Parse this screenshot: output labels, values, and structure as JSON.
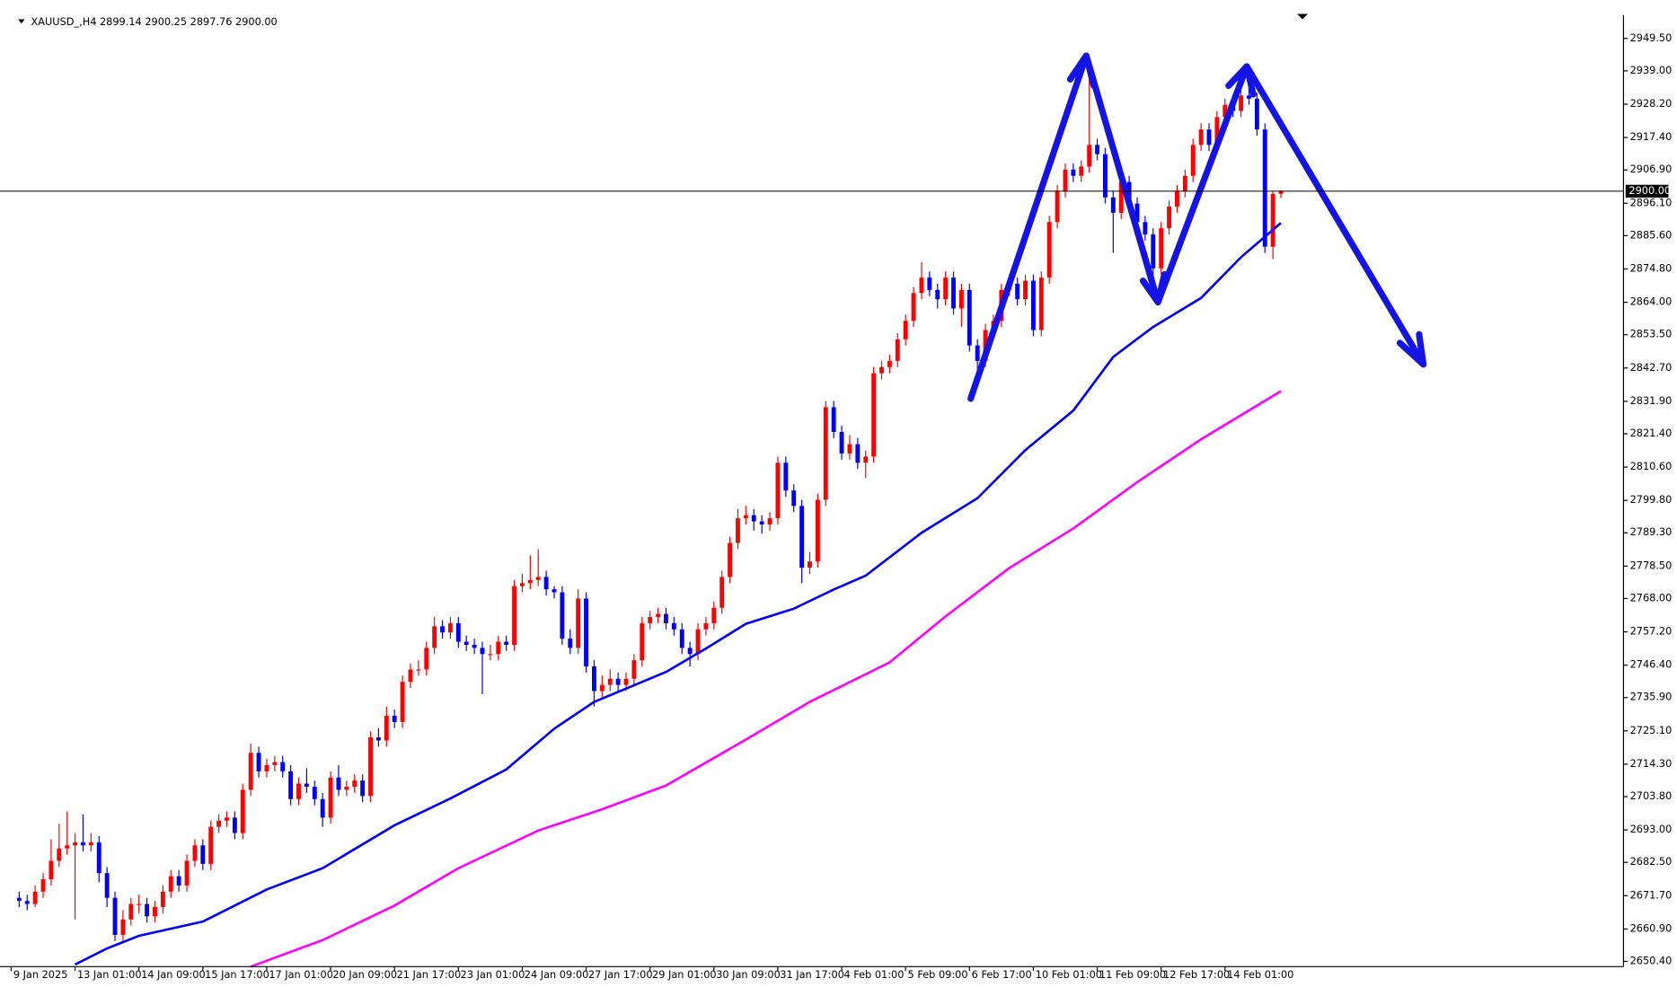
{
  "chart_data": {
    "type": "candlestick",
    "title": "XAUUSD_,H4  2899.14 2900.25 2897.76 2900.00",
    "up_color": "#ff0000",
    "down_color": "#0000ff",
    "grid": false,
    "xlim": [
      -2.4,
      200.9
    ],
    "ylim": [
      2648.7,
      2957.1
    ],
    "yticks": [
      {
        "value": 2650.4,
        "label": "2650.40"
      },
      {
        "value": 2660.9,
        "label": "2660.90"
      },
      {
        "value": 2671.7,
        "label": "2671.70"
      },
      {
        "value": 2682.5,
        "label": "2682.50"
      },
      {
        "value": 2693,
        "label": "2693.00"
      },
      {
        "value": 2703.8,
        "label": "2703.80"
      },
      {
        "value": 2714.3,
        "label": "2714.30"
      },
      {
        "value": 2725.1,
        "label": "2725.10"
      },
      {
        "value": 2735.9,
        "label": "2735.90"
      },
      {
        "value": 2746.4,
        "label": "2746.40"
      },
      {
        "value": 2757.2,
        "label": "2757.20"
      },
      {
        "value": 2768,
        "label": "2768.00"
      },
      {
        "value": 2778.5,
        "label": "2778.50"
      },
      {
        "value": 2789.3,
        "label": "2789.30"
      },
      {
        "value": 2799.8,
        "label": "2799.80"
      },
      {
        "value": 2810.6,
        "label": "2810.60"
      },
      {
        "value": 2821.4,
        "label": "2821.40"
      },
      {
        "value": 2831.9,
        "label": "2831.90"
      },
      {
        "value": 2842.7,
        "label": "2842.70"
      },
      {
        "value": 2853.5,
        "label": "2853.50"
      },
      {
        "value": 2864,
        "label": "2864.00"
      },
      {
        "value": 2874.8,
        "label": "2874.80"
      },
      {
        "value": 2885.6,
        "label": "2885.60"
      },
      {
        "value": 2896.1,
        "label": "2896.10"
      },
      {
        "value": 2906.9,
        "label": "2906.90"
      },
      {
        "value": 2917.4,
        "label": "2917.40"
      },
      {
        "value": 2928.2,
        "label": "2928.20"
      },
      {
        "value": 2939,
        "label": "2939.00"
      },
      {
        "value": 2949.5,
        "label": "2949.50"
      }
    ],
    "xticks": [
      {
        "value": -1,
        "label": "9 Jan 2025"
      },
      {
        "value": 7,
        "label": "13 Jan 01:00"
      },
      {
        "value": 15,
        "label": "14 Jan 09:00"
      },
      {
        "value": 23,
        "label": "15 Jan 17:00"
      },
      {
        "value": 31,
        "label": "17 Jan 01:00"
      },
      {
        "value": 39,
        "label": "20 Jan 09:00"
      },
      {
        "value": 47,
        "label": "21 Jan 17:00"
      },
      {
        "value": 55,
        "label": "23 Jan 01:00"
      },
      {
        "value": 63,
        "label": "24 Jan 09:00"
      },
      {
        "value": 71,
        "label": "27 Jan 17:00"
      },
      {
        "value": 79,
        "label": "29 Jan 01:00"
      },
      {
        "value": 87,
        "label": "30 Jan 09:00"
      },
      {
        "value": 95,
        "label": "31 Jan 17:00"
      },
      {
        "value": 103,
        "label": "4 Feb 01:00"
      },
      {
        "value": 111,
        "label": "5 Feb 09:00"
      },
      {
        "value": 119,
        "label": "6 Feb 17:00"
      },
      {
        "value": 127,
        "label": "10 Feb 01:00"
      },
      {
        "value": 135,
        "label": "11 Feb 09:00"
      },
      {
        "value": 143,
        "label": "12 Feb 17:00"
      },
      {
        "value": 151,
        "label": "14 Feb 01:00"
      }
    ],
    "price_line": {
      "value": 2900,
      "label": "2900.00"
    },
    "ohlc": [
      [
        2671,
        2673,
        2668,
        2670
      ],
      [
        2670,
        2672,
        2667,
        2669
      ],
      [
        2669,
        2675,
        2668,
        2673
      ],
      [
        2673,
        2679,
        2671,
        2677
      ],
      [
        2677,
        2690,
        2675,
        2683
      ],
      [
        2683,
        2695,
        2681,
        2687
      ],
      [
        2687,
        2699,
        2685,
        2688
      ],
      [
        2688,
        2692,
        2664,
        2689
      ],
      [
        2689,
        2698,
        2686,
        2688
      ],
      [
        2688,
        2692,
        2686,
        2689
      ],
      [
        2689,
        2691,
        2676,
        2679
      ],
      [
        2679,
        2681,
        2668,
        2671
      ],
      [
        2671,
        2673,
        2657,
        2659
      ],
      [
        2659,
        2667,
        2657,
        2664
      ],
      [
        2664,
        2671,
        2662,
        2669
      ],
      [
        2669,
        2672,
        2666,
        2669
      ],
      [
        2669,
        2671,
        2663,
        2665
      ],
      [
        2665,
        2670,
        2663,
        2668
      ],
      [
        2668,
        2675,
        2666,
        2673
      ],
      [
        2673,
        2680,
        2671,
        2678
      ],
      [
        2678,
        2680,
        2673,
        2675
      ],
      [
        2675,
        2685,
        2673,
        2683
      ],
      [
        2683,
        2690,
        2681,
        2688
      ],
      [
        2688,
        2690,
        2680,
        2682
      ],
      [
        2682,
        2696,
        2680,
        2694
      ],
      [
        2694,
        2698,
        2692,
        2696
      ],
      [
        2696,
        2699,
        2694,
        2697
      ],
      [
        2697,
        2699,
        2690,
        2692
      ],
      [
        2692,
        2708,
        2690,
        2706
      ],
      [
        2706,
        2721,
        2704,
        2718
      ],
      [
        2718,
        2720,
        2710,
        2712
      ],
      [
        2712,
        2716,
        2710,
        2714
      ],
      [
        2714,
        2717,
        2712,
        2715
      ],
      [
        2715,
        2717,
        2710,
        2712
      ],
      [
        2712,
        2714,
        2701,
        2703
      ],
      [
        2703,
        2710,
        2701,
        2708
      ],
      [
        2708,
        2713,
        2705,
        2707
      ],
      [
        2707,
        2709,
        2701,
        2703
      ],
      [
        2703,
        2705,
        2694,
        2697
      ],
      [
        2697,
        2712,
        2695,
        2710
      ],
      [
        2710,
        2714,
        2704,
        2706
      ],
      [
        2706,
        2709,
        2704,
        2707
      ],
      [
        2707,
        2711,
        2705,
        2709
      ],
      [
        2709,
        2711,
        2702,
        2704
      ],
      [
        2704,
        2725,
        2702,
        2723
      ],
      [
        2723,
        2726,
        2720,
        2722
      ],
      [
        2722,
        2733,
        2720,
        2730
      ],
      [
        2730,
        2732,
        2726,
        2728
      ],
      [
        2728,
        2743,
        2726,
        2741
      ],
      [
        2741,
        2747,
        2739,
        2745
      ],
      [
        2745,
        2748,
        2743,
        2745
      ],
      [
        2745,
        2754,
        2743,
        2752
      ],
      [
        2752,
        2762,
        2750,
        2759
      ],
      [
        2759,
        2761,
        2755,
        2757
      ],
      [
        2757,
        2762,
        2755,
        2760
      ],
      [
        2760,
        2762,
        2752,
        2754
      ],
      [
        2754,
        2756,
        2751,
        2753
      ],
      [
        2753,
        2755,
        2750,
        2752
      ],
      [
        2752,
        2754,
        2737,
        2750
      ],
      [
        2750,
        2753,
        2748,
        2750
      ],
      [
        2750,
        2756,
        2748,
        2754
      ],
      [
        2754,
        2756,
        2751,
        2753
      ],
      [
        2753,
        2774,
        2751,
        2772
      ],
      [
        2772,
        2776,
        2770,
        2773
      ],
      [
        2773,
        2782,
        2771,
        2774
      ],
      [
        2774,
        2784,
        2772,
        2775
      ],
      [
        2775,
        2777,
        2769,
        2771
      ],
      [
        2771,
        2772,
        2768,
        2770
      ],
      [
        2770,
        2772,
        2753,
        2755
      ],
      [
        2755,
        2758,
        2750,
        2752
      ],
      [
        2752,
        2771,
        2750,
        2768
      ],
      [
        2768,
        2770,
        2744,
        2746
      ],
      [
        2746,
        2748,
        2733,
        2738
      ],
      [
        2738,
        2743,
        2736,
        2740
      ],
      [
        2740,
        2745,
        2738,
        2742
      ],
      [
        2742,
        2744,
        2738,
        2740
      ],
      [
        2740,
        2744,
        2738,
        2742
      ],
      [
        2742,
        2750,
        2740,
        2748
      ],
      [
        2748,
        2762,
        2746,
        2760
      ],
      [
        2760,
        2764,
        2758,
        2762
      ],
      [
        2762,
        2765,
        2760,
        2763
      ],
      [
        2763,
        2765,
        2758,
        2760
      ],
      [
        2760,
        2762,
        2756,
        2758
      ],
      [
        2758,
        2760,
        2750,
        2752
      ],
      [
        2752,
        2754,
        2746,
        2750
      ],
      [
        2750,
        2760,
        2748,
        2758
      ],
      [
        2758,
        2762,
        2756,
        2760
      ],
      [
        2760,
        2767,
        2758,
        2765
      ],
      [
        2765,
        2777,
        2763,
        2775
      ],
      [
        2775,
        2788,
        2773,
        2786
      ],
      [
        2786,
        2797,
        2784,
        2794
      ],
      [
        2794,
        2798,
        2792,
        2795
      ],
      [
        2795,
        2797,
        2790,
        2793
      ],
      [
        2793,
        2795,
        2789,
        2792
      ],
      [
        2792,
        2796,
        2790,
        2794
      ],
      [
        2794,
        2814,
        2792,
        2812
      ],
      [
        2812,
        2814,
        2801,
        2803
      ],
      [
        2803,
        2805,
        2796,
        2798
      ],
      [
        2798,
        2800,
        2773,
        2778
      ],
      [
        2778,
        2783,
        2776,
        2780
      ],
      [
        2780,
        2802,
        2778,
        2800
      ],
      [
        2800,
        2832,
        2798,
        2830
      ],
      [
        2830,
        2832,
        2820,
        2822
      ],
      [
        2822,
        2824,
        2813,
        2815
      ],
      [
        2815,
        2821,
        2813,
        2818
      ],
      [
        2818,
        2820,
        2810,
        2812
      ],
      [
        2812,
        2816,
        2807,
        2814
      ],
      [
        2814,
        2843,
        2812,
        2841
      ],
      [
        2841,
        2845,
        2839,
        2843
      ],
      [
        2843,
        2847,
        2841,
        2845
      ],
      [
        2845,
        2854,
        2843,
        2852
      ],
      [
        2852,
        2860,
        2850,
        2858
      ],
      [
        2858,
        2869,
        2856,
        2867
      ],
      [
        2867,
        2877,
        2865,
        2872
      ],
      [
        2872,
        2874,
        2866,
        2868
      ],
      [
        2868,
        2870,
        2862,
        2865
      ],
      [
        2865,
        2874,
        2863,
        2872
      ],
      [
        2872,
        2874,
        2860,
        2862
      ],
      [
        2862,
        2870,
        2856,
        2868
      ],
      [
        2868,
        2870,
        2848,
        2850
      ],
      [
        2850,
        2852,
        2842,
        2845
      ],
      [
        2845,
        2857,
        2843,
        2855
      ],
      [
        2855,
        2860,
        2853,
        2858
      ],
      [
        2858,
        2870,
        2856,
        2868
      ],
      [
        2868,
        2872,
        2866,
        2870
      ],
      [
        2870,
        2872,
        2863,
        2865
      ],
      [
        2865,
        2873,
        2863,
        2871
      ],
      [
        2871,
        2873,
        2853,
        2855
      ],
      [
        2855,
        2874,
        2853,
        2872
      ],
      [
        2872,
        2892,
        2870,
        2890
      ],
      [
        2890,
        2902,
        2888,
        2900
      ],
      [
        2900,
        2909,
        2898,
        2907
      ],
      [
        2907,
        2909,
        2903,
        2905
      ],
      [
        2905,
        2910,
        2903,
        2908
      ],
      [
        2908,
        2937,
        2906,
        2915
      ],
      [
        2915,
        2917,
        2910,
        2912
      ],
      [
        2912,
        2914,
        2896,
        2898
      ],
      [
        2898,
        2900,
        2880,
        2893
      ],
      [
        2893,
        2905,
        2891,
        2903
      ],
      [
        2903,
        2905,
        2894,
        2896
      ],
      [
        2896,
        2898,
        2888,
        2890
      ],
      [
        2890,
        2892,
        2884,
        2886
      ],
      [
        2886,
        2888,
        2866,
        2875
      ],
      [
        2875,
        2890,
        2873,
        2888
      ],
      [
        2888,
        2897,
        2886,
        2895
      ],
      [
        2895,
        2902,
        2893,
        2900
      ],
      [
        2900,
        2907,
        2898,
        2905
      ],
      [
        2905,
        2917,
        2903,
        2915
      ],
      [
        2915,
        2922,
        2913,
        2920
      ],
      [
        2920,
        2922,
        2913,
        2915
      ],
      [
        2915,
        2926,
        2913,
        2924
      ],
      [
        2924,
        2930,
        2922,
        2928
      ],
      [
        2928,
        2930,
        2924,
        2926
      ],
      [
        2926,
        2933,
        2924,
        2931
      ],
      [
        2931,
        2940,
        2928,
        2930
      ],
      [
        2930,
        2932,
        2918,
        2920
      ],
      [
        2920,
        2922,
        2880,
        2882
      ],
      [
        2882,
        2900,
        2878,
        2899.14
      ],
      [
        2899.14,
        2900.25,
        2897.76,
        2900
      ]
    ],
    "lines": [
      {
        "color": "#0000ff",
        "x": [
          7,
          11,
          15,
          23,
          31,
          38,
          47,
          54,
          61,
          67,
          72,
          81,
          86,
          91,
          97,
          102,
          106,
          113,
          120,
          126,
          132,
          137,
          142,
          148,
          153,
          158
        ],
        "values": [
          2649.4,
          2654.6,
          2658.7,
          2663.3,
          2673.7,
          2680.6,
          2694.5,
          2703.2,
          2712.6,
          2725.8,
          2734.5,
          2744.2,
          2751.8,
          2759.8,
          2764.7,
          2770.9,
          2775.4,
          2789.3,
          2800.5,
          2816.1,
          2828.9,
          2846.3,
          2856,
          2865.4,
          2878.6,
          2889.7
        ]
      },
      {
        "color": "#ff00ff",
        "x": [
          29,
          38,
          47,
          55,
          65,
          73,
          81,
          91,
          99,
          109,
          116,
          124,
          132,
          140,
          148,
          158
        ],
        "values": [
          2648.7,
          2657.3,
          2668.5,
          2680.6,
          2692.8,
          2699.7,
          2707.4,
          2722.3,
          2734.5,
          2747.3,
          2762.2,
          2777.9,
          2790.7,
          2805.7,
          2819.6,
          2835.2
        ]
      }
    ]
  }
}
